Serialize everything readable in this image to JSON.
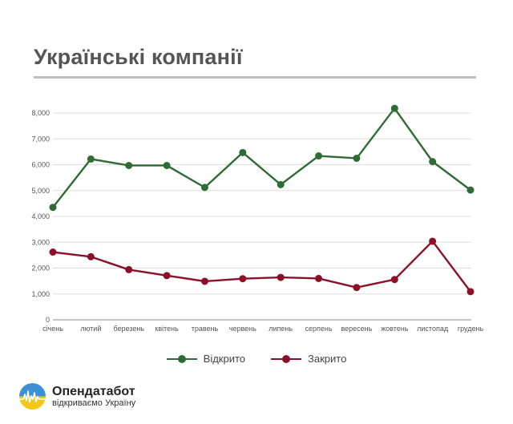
{
  "title": "Українські компанії",
  "colors": {
    "opened": "#2e6b35",
    "closed": "#8c1128",
    "grid": "#dedede",
    "axis": "#888888"
  },
  "chart_data": {
    "type": "line",
    "title": "Українські компанії",
    "categories": [
      "січень",
      "лютий",
      "березень",
      "квітень",
      "травень",
      "червень",
      "липень",
      "серпень",
      "вересень",
      "жовтень",
      "листопад",
      "грудень"
    ],
    "series": [
      {
        "name": "Відкрито",
        "color": "#2e6b35",
        "values": [
          4350,
          6220,
          5970,
          5970,
          5120,
          6470,
          5230,
          6340,
          6250,
          8180,
          6120,
          5020
        ]
      },
      {
        "name": "Закрито",
        "color": "#8c1128",
        "values": [
          2620,
          2440,
          1940,
          1710,
          1490,
          1590,
          1640,
          1600,
          1250,
          1560,
          3040,
          1090
        ]
      }
    ],
    "ylim": [
      0,
      8000
    ],
    "yticks": [
      "0",
      "1,000",
      "2,000",
      "3,000",
      "4,000",
      "5,000",
      "6,000",
      "7,000",
      "8,000"
    ],
    "grid": true,
    "legend_position": "bottom"
  },
  "legend": [
    {
      "label": "Відкрито",
      "color": "#2e6b35"
    },
    {
      "label": "Закрито",
      "color": "#8c1128"
    }
  ],
  "logo": {
    "name": "Опендатабот",
    "tagline": "відкриваємо Україну"
  }
}
